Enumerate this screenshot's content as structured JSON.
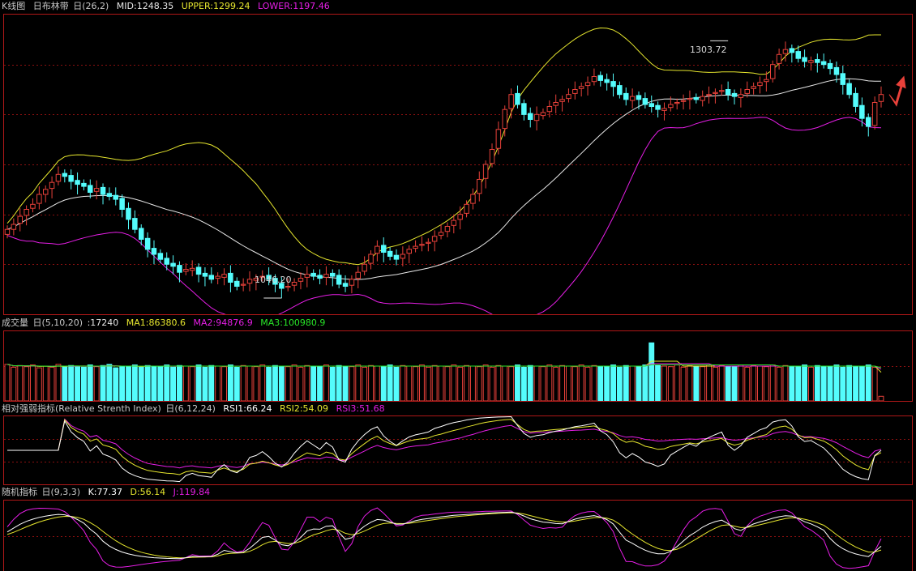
{
  "colors": {
    "up": "#e8413a",
    "down": "#54fcfc",
    "mid": "#e8e8e8",
    "upper": "#e6e62e",
    "lower": "#e61ee6",
    "ma1": "#e6e62e",
    "ma2": "#e61ee6",
    "ma3": "#28e628",
    "rsi1": "#ffffff",
    "rsi2": "#e6e62e",
    "rsi3": "#e61ee6",
    "k": "#ffffff",
    "d": "#e6e62e",
    "j": "#e61ee6",
    "grid": "#8a1010",
    "label": "#c8c8c8"
  },
  "main_header": {
    "name": "K线图",
    "indicator": "日布林带",
    "params": "日(26,2)",
    "mid": "MID:1248.35",
    "upper": "UPPER:1299.24",
    "lower": "LOWER:1197.46"
  },
  "volume_header": {
    "name": "成交量",
    "params": "日(5,10,20)",
    "vol": ":17240",
    "ma1": "MA1:86380.6",
    "ma2": "MA2:94876.9",
    "ma3": "MA3:100980.9"
  },
  "rsi_header": {
    "name": "相对强弱指标(Relative Strenth Index)",
    "params": "日(6,12,24)",
    "rsi1": "RSI1:66.24",
    "rsi2": "RSI2:54.09",
    "rsi3": "RSI3:51.68"
  },
  "kdj_header": {
    "name": "随机指标",
    "params": "日(9,3,3)",
    "k": "K:77.37",
    "d": "D:56.14",
    "j": "J:119.84"
  },
  "annotations": {
    "high": "1303.72",
    "low": "1046.20"
  },
  "chart_data": {
    "type": "candlestick",
    "x_range": [
      0,
      137
    ],
    "y_range": [
      1030,
      1330
    ],
    "high_mark": {
      "x": 113,
      "value": 1303.72
    },
    "low_mark": {
      "x": 43,
      "value": 1046.2
    },
    "close": [
      1115,
      1120,
      1128,
      1135,
      1140,
      1150,
      1155,
      1162,
      1170,
      1168,
      1163,
      1160,
      1158,
      1152,
      1156,
      1150,
      1148,
      1145,
      1135,
      1125,
      1115,
      1105,
      1095,
      1090,
      1085,
      1080,
      1078,
      1072,
      1075,
      1076,
      1070,
      1068,
      1065,
      1068,
      1070,
      1062,
      1058,
      1060,
      1065,
      1066,
      1068,
      1065,
      1060,
      1056,
      1058,
      1062,
      1066,
      1070,
      1068,
      1066,
      1070,
      1068,
      1060,
      1058,
      1065,
      1072,
      1080,
      1090,
      1098,
      1092,
      1088,
      1085,
      1090,
      1095,
      1098,
      1100,
      1102,
      1108,
      1112,
      1118,
      1124,
      1130,
      1140,
      1150,
      1165,
      1180,
      1195,
      1215,
      1235,
      1250,
      1240,
      1230,
      1225,
      1230,
      1232,
      1238,
      1242,
      1245,
      1250,
      1255,
      1258,
      1262,
      1268,
      1264,
      1262,
      1258,
      1250,
      1245,
      1248,
      1245,
      1240,
      1238,
      1235,
      1236,
      1240,
      1242,
      1244,
      1246,
      1245,
      1248,
      1250,
      1252,
      1254,
      1250,
      1248,
      1250,
      1255,
      1258,
      1262,
      1265,
      1280,
      1290,
      1295,
      1292,
      1286,
      1283,
      1284,
      1282,
      1280,
      1276,
      1270,
      1260,
      1250,
      1238,
      1226,
      1218,
      1242,
      1250
    ],
    "open": [
      1110,
      1115,
      1121,
      1129,
      1136,
      1141,
      1150,
      1156,
      1163,
      1171,
      1169,
      1164,
      1161,
      1159,
      1153,
      1157,
      1151,
      1149,
      1146,
      1136,
      1126,
      1116,
      1106,
      1096,
      1091,
      1086,
      1081,
      1079,
      1073,
      1074,
      1077,
      1071,
      1069,
      1066,
      1067,
      1071,
      1063,
      1059,
      1061,
      1064,
      1067,
      1069,
      1066,
      1061,
      1057,
      1059,
      1063,
      1067,
      1071,
      1069,
      1067,
      1071,
      1069,
      1061,
      1059,
      1066,
      1073,
      1081,
      1091,
      1099,
      1093,
      1089,
      1086,
      1091,
      1096,
      1099,
      1101,
      1103,
      1109,
      1113,
      1119,
      1125,
      1131,
      1141,
      1151,
      1166,
      1181,
      1196,
      1216,
      1236,
      1251,
      1241,
      1231,
      1224,
      1229,
      1233,
      1239,
      1243,
      1246,
      1251,
      1256,
      1259,
      1263,
      1269,
      1265,
      1263,
      1259,
      1251,
      1244,
      1249,
      1246,
      1241,
      1239,
      1234,
      1237,
      1241,
      1243,
      1245,
      1247,
      1244,
      1249,
      1251,
      1253,
      1255,
      1251,
      1247,
      1251,
      1256,
      1259,
      1263,
      1266,
      1281,
      1291,
      1296,
      1293,
      1287,
      1282,
      1285,
      1283,
      1281,
      1277,
      1271,
      1261,
      1251,
      1239,
      1227,
      1219,
      1243
    ],
    "volume": [
      63,
      58,
      61,
      59,
      62,
      57,
      60,
      58,
      63,
      59,
      61,
      60,
      58,
      62,
      59,
      61,
      63,
      57,
      60,
      59,
      62,
      58,
      61,
      60,
      59,
      62,
      58,
      61,
      60,
      59,
      62,
      58,
      61,
      60,
      59,
      62,
      58,
      61,
      60,
      59,
      62,
      58,
      61,
      60,
      59,
      62,
      58,
      61,
      60,
      59,
      62,
      58,
      61,
      60,
      59,
      62,
      58,
      61,
      60,
      59,
      62,
      58,
      61,
      60,
      59,
      62,
      58,
      61,
      60,
      59,
      62,
      58,
      61,
      60,
      59,
      62,
      58,
      61,
      60,
      59,
      62,
      58,
      61,
      60,
      59,
      62,
      58,
      61,
      60,
      59,
      62,
      58,
      61,
      60,
      59,
      62,
      58,
      61,
      60,
      59,
      62,
      100,
      61,
      60,
      59,
      62,
      58,
      61,
      60,
      59,
      62,
      58,
      61,
      60,
      59,
      62,
      58,
      61,
      60,
      59,
      62,
      58,
      61,
      60,
      59,
      62,
      58,
      61,
      60,
      59,
      62,
      58,
      61,
      60,
      59,
      62,
      58,
      8
    ],
    "volume_ylim": [
      0,
      120
    ],
    "rsi_ylim": [
      0,
      100
    ],
    "kdj_ylim": [
      -20,
      120
    ],
    "note_series": "Indicator lines (Bollinger, volume MAs, RSI, KDJ) are derived from the close series."
  }
}
